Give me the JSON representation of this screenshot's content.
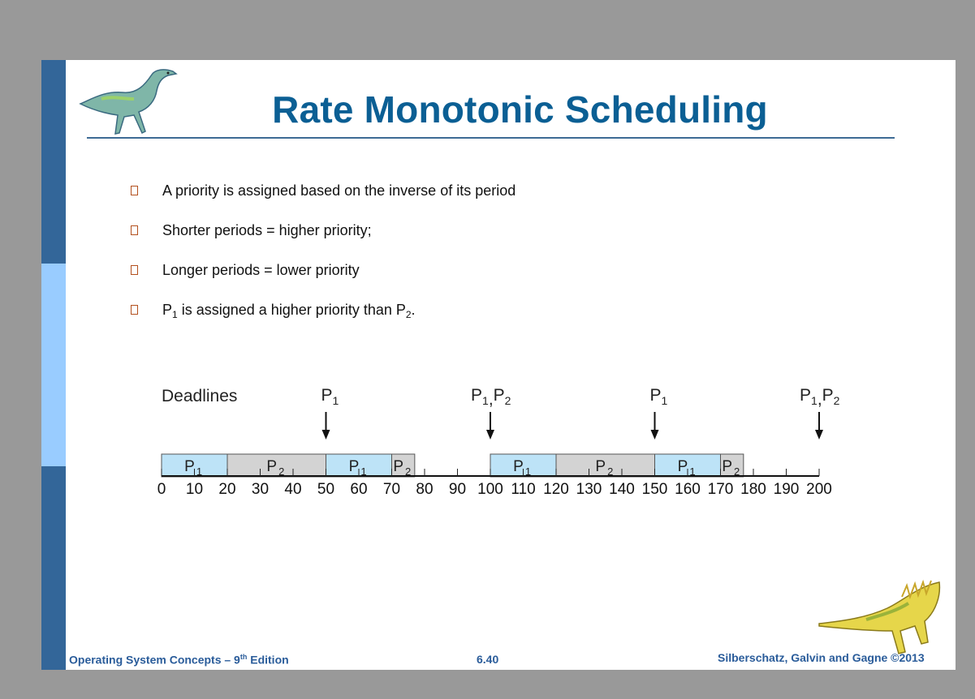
{
  "slide": {
    "title": "Rate Monotonic Scheduling",
    "bullets": [
      {
        "text": "A priority is assigned based on the inverse of its period"
      },
      {
        "text": "Shorter periods = higher priority;"
      },
      {
        "text": "Longer periods = lower priority"
      },
      {
        "p1": "P",
        "p1_sub": "1",
        "mid": " is assigned a higher priority than P",
        "p2_sub": "2",
        "end": "."
      }
    ],
    "footer": {
      "left_prefix": "Operating System Concepts – 9",
      "left_sup": "th",
      "left_suffix": " Edition",
      "page": "6.40",
      "right": "Silberschatz, Galvin and Gagne ©2013"
    }
  },
  "chart_data": {
    "type": "gantt",
    "deadlines_label": "Deadlines",
    "x_ticks": [
      0,
      10,
      20,
      30,
      40,
      50,
      60,
      70,
      80,
      90,
      100,
      110,
      120,
      130,
      140,
      150,
      160,
      170,
      180,
      190,
      200
    ],
    "xlim": [
      0,
      200
    ],
    "segments": [
      {
        "process": "P",
        "sub": "1",
        "start": 0,
        "end": 20,
        "color": "#bde3f7"
      },
      {
        "process": "P",
        "sub": "2",
        "start": 20,
        "end": 50,
        "color": "#d3d3d3"
      },
      {
        "process": "P",
        "sub": "1",
        "start": 50,
        "end": 70,
        "color": "#bde3f7"
      },
      {
        "process": "P",
        "sub": "2",
        "start": 70,
        "end": 77,
        "color": "#d3d3d3"
      },
      {
        "process": "P",
        "sub": "1",
        "start": 100,
        "end": 120,
        "color": "#bde3f7"
      },
      {
        "process": "P",
        "sub": "2",
        "start": 120,
        "end": 150,
        "color": "#d3d3d3"
      },
      {
        "process": "P",
        "sub": "1",
        "start": 150,
        "end": 170,
        "color": "#bde3f7"
      },
      {
        "process": "P",
        "sub": "2",
        "start": 170,
        "end": 177,
        "color": "#d3d3d3"
      }
    ],
    "deadlines": [
      {
        "time": 50,
        "parts": [
          {
            "p": "P",
            "sub": "1"
          }
        ]
      },
      {
        "time": 100,
        "parts": [
          {
            "p": "P",
            "sub": "1"
          },
          {
            "p": "P",
            "sub": "2"
          }
        ]
      },
      {
        "time": 150,
        "parts": [
          {
            "p": "P",
            "sub": "1"
          }
        ]
      },
      {
        "time": 200,
        "parts": [
          {
            "p": "P",
            "sub": "1"
          },
          {
            "p": "P",
            "sub": "2"
          }
        ]
      }
    ]
  }
}
